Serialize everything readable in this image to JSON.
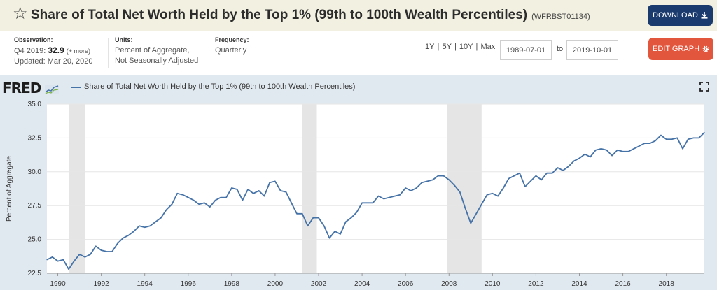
{
  "header": {
    "title": "Share of Total Net Worth Held by the Top 1% (99th to 100th Wealth Percentiles)",
    "series_id": "(WFRBST01134)",
    "download_label": "DOWNLOAD"
  },
  "observation": {
    "label": "Observation:",
    "period": "Q4 2019:",
    "value": "32.9",
    "more": "(+ more)",
    "updated": "Updated: Mar 20, 2020"
  },
  "units": {
    "label": "Units:",
    "line1": "Percent of Aggregate,",
    "line2": "Not Seasonally Adjusted"
  },
  "frequency": {
    "label": "Frequency:",
    "value": "Quarterly"
  },
  "range_buttons": [
    "1Y",
    "5Y",
    "10Y",
    "Max"
  ],
  "date_range": {
    "start": "1989-07-01",
    "to": "to",
    "end": "2019-10-01"
  },
  "edit_label": "EDIT GRAPH",
  "logo": "FRED",
  "colors": {
    "line": "#4572a7",
    "recession": "#e5e5e5",
    "panel": "#e1e9f0",
    "download": "#1b3b6f",
    "edit": "#e2563d"
  },
  "icons": {
    "star": "star-icon",
    "download": "download-icon",
    "gear": "gear-icon",
    "fullscreen": "fullscreen-icon"
  },
  "chart_data": {
    "type": "line",
    "title": "",
    "ylabel": "Percent of Aggregate",
    "xlabel": "",
    "ylim": [
      22.5,
      35.0
    ],
    "xlim": [
      1989.5,
      2019.75
    ],
    "yticks": [
      22.5,
      25.0,
      27.5,
      30.0,
      32.5,
      35.0
    ],
    "xticks": [
      1990,
      1992,
      1994,
      1996,
      1998,
      2000,
      2002,
      2004,
      2006,
      2008,
      2010,
      2012,
      2014,
      2016,
      2018
    ],
    "grid": true,
    "legend_position": "top-left",
    "recessions": [
      [
        1990.5,
        1991.25
      ],
      [
        2001.25,
        2001.92
      ],
      [
        2007.92,
        2009.5
      ]
    ],
    "series": [
      {
        "name": "Share of Total Net Worth Held by the Top 1% (99th to 100th Wealth Percentiles)",
        "x": [
          1989.5,
          1989.75,
          1990.0,
          1990.25,
          1990.5,
          1990.75,
          1991.0,
          1991.25,
          1991.5,
          1991.75,
          1992.0,
          1992.25,
          1992.5,
          1992.75,
          1993.0,
          1993.25,
          1993.5,
          1993.75,
          1994.0,
          1994.25,
          1994.5,
          1994.75,
          1995.0,
          1995.25,
          1995.5,
          1995.75,
          1996.0,
          1996.25,
          1996.5,
          1996.75,
          1997.0,
          1997.25,
          1997.5,
          1997.75,
          1998.0,
          1998.25,
          1998.5,
          1998.75,
          1999.0,
          1999.25,
          1999.5,
          1999.75,
          2000.0,
          2000.25,
          2000.5,
          2000.75,
          2001.0,
          2001.25,
          2001.5,
          2001.75,
          2002.0,
          2002.25,
          2002.5,
          2002.75,
          2003.0,
          2003.25,
          2003.5,
          2003.75,
          2004.0,
          2004.25,
          2004.5,
          2004.75,
          2005.0,
          2005.25,
          2005.5,
          2005.75,
          2006.0,
          2006.25,
          2006.5,
          2006.75,
          2007.0,
          2007.25,
          2007.5,
          2007.75,
          2008.0,
          2008.25,
          2008.5,
          2008.75,
          2009.0,
          2009.25,
          2009.5,
          2009.75,
          2010.0,
          2010.25,
          2010.5,
          2010.75,
          2011.0,
          2011.25,
          2011.5,
          2011.75,
          2012.0,
          2012.25,
          2012.5,
          2012.75,
          2013.0,
          2013.25,
          2013.5,
          2013.75,
          2014.0,
          2014.25,
          2014.5,
          2014.75,
          2015.0,
          2015.25,
          2015.5,
          2015.75,
          2016.0,
          2016.25,
          2016.5,
          2016.75,
          2017.0,
          2017.25,
          2017.5,
          2017.75,
          2018.0,
          2018.25,
          2018.5,
          2018.75,
          2019.0,
          2019.25,
          2019.5,
          2019.75
        ],
        "values": [
          23.5,
          23.7,
          23.4,
          23.5,
          22.8,
          23.4,
          23.9,
          23.7,
          23.9,
          24.5,
          24.2,
          24.1,
          24.1,
          24.7,
          25.1,
          25.3,
          25.6,
          26.0,
          25.9,
          26.0,
          26.3,
          26.6,
          27.2,
          27.6,
          28.4,
          28.3,
          28.1,
          27.9,
          27.6,
          27.7,
          27.4,
          27.9,
          28.1,
          28.1,
          28.8,
          28.7,
          27.9,
          28.7,
          28.4,
          28.6,
          28.2,
          29.2,
          29.3,
          28.6,
          28.5,
          27.7,
          26.9,
          26.9,
          26.0,
          26.6,
          26.6,
          26.0,
          25.1,
          25.6,
          25.4,
          26.3,
          26.6,
          27.0,
          27.7,
          27.7,
          27.7,
          28.2,
          28.0,
          28.1,
          28.2,
          28.3,
          28.8,
          28.6,
          28.8,
          29.2,
          29.3,
          29.4,
          29.7,
          29.7,
          29.4,
          29.0,
          28.5,
          27.3,
          26.2,
          26.9,
          27.6,
          28.3,
          28.4,
          28.2,
          28.8,
          29.5,
          29.7,
          29.9,
          28.9,
          29.3,
          29.7,
          29.4,
          29.9,
          29.9,
          30.3,
          30.1,
          30.4,
          30.8,
          31.0,
          31.3,
          31.1,
          31.6,
          31.7,
          31.6,
          31.2,
          31.6,
          31.5,
          31.5,
          31.7,
          31.9,
          32.1,
          32.1,
          32.3,
          32.7,
          32.4,
          32.4,
          32.5,
          31.7,
          32.4,
          32.5,
          32.5,
          32.9
        ]
      }
    ]
  }
}
